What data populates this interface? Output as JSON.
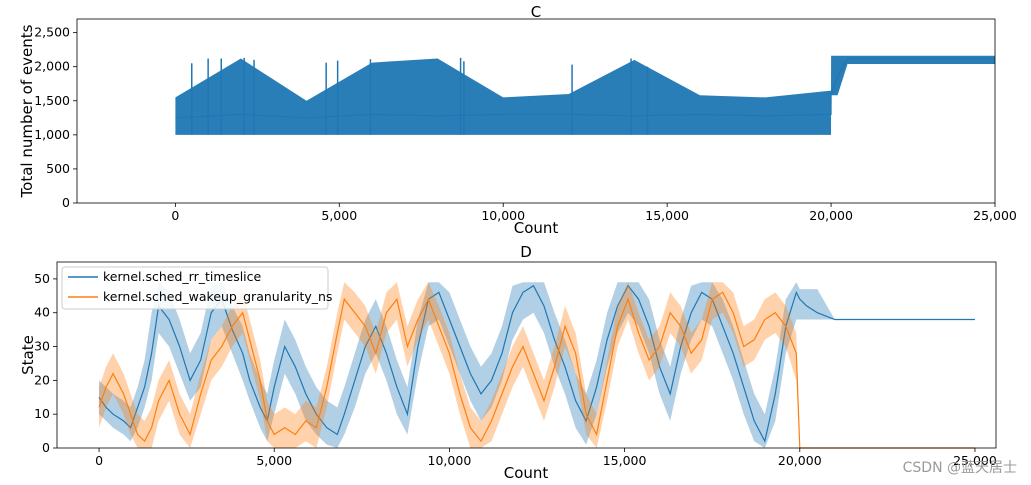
{
  "watermark": "CSDN @蓝天居士",
  "chart_data": [
    {
      "type": "line",
      "panel": "C",
      "title": "C",
      "xlabel": "Count",
      "ylabel": "Total number of events",
      "xlim": [
        -3000,
        25000
      ],
      "ylim": [
        0,
        2700
      ],
      "xticks": [
        0,
        5000,
        10000,
        15000,
        20000,
        25000
      ],
      "xtick_labels": [
        "0",
        "5,000",
        "10,000",
        "15,000",
        "20,000",
        "25,000"
      ],
      "yticks": [
        0,
        500,
        1000,
        1500,
        2000,
        2500
      ],
      "ytick_labels": [
        "0",
        "500",
        "1,000",
        "1,500",
        "2,000",
        "2,500"
      ],
      "grid": false,
      "series": [
        {
          "color": "#1f77b4",
          "x": [
            0,
            2000,
            4000,
            6000,
            8000,
            10000,
            12000,
            14000,
            16000,
            18000,
            19999,
            20000,
            20200,
            20500,
            21000,
            22000,
            23000,
            24000,
            25000
          ],
          "y": [
            1250,
            1300,
            1250,
            1300,
            1280,
            1300,
            1300,
            1280,
            1300,
            1280,
            1300,
            1600,
            1850,
            2120,
            2120,
            2120,
            2120,
            2120,
            2120
          ],
          "band_low": [
            1000,
            1000,
            1000,
            1000,
            1000,
            1000,
            1000,
            1000,
            1000,
            1000,
            1000,
            1580,
            1580,
            2040,
            2040,
            2040,
            2040,
            2040,
            2040
          ],
          "band_high": [
            1550,
            2120,
            1500,
            2060,
            2120,
            1550,
            1600,
            2100,
            1580,
            1550,
            1650,
            2160,
            2160,
            2160,
            2160,
            2160,
            2160,
            2160,
            2160
          ],
          "spikes": [
            {
              "x": 500,
              "y": 2050
            },
            {
              "x": 1000,
              "y": 2120
            },
            {
              "x": 1400,
              "y": 2120
            },
            {
              "x": 2100,
              "y": 2130
            },
            {
              "x": 2400,
              "y": 2100
            },
            {
              "x": 4600,
              "y": 2060
            },
            {
              "x": 4950,
              "y": 2090
            },
            {
              "x": 5950,
              "y": 2110
            },
            {
              "x": 8700,
              "y": 2130
            },
            {
              "x": 8800,
              "y": 2080
            },
            {
              "x": 12100,
              "y": 2030
            },
            {
              "x": 13900,
              "y": 2120
            },
            {
              "x": 14400,
              "y": 2000
            }
          ]
        }
      ]
    },
    {
      "type": "line",
      "panel": "D",
      "title": "D",
      "xlabel": "Count",
      "ylabel": "State",
      "xlim": [
        -1200,
        25600
      ],
      "ylim": [
        0,
        55
      ],
      "xticks": [
        0,
        5000,
        10000,
        15000,
        20000,
        25000
      ],
      "xtick_labels": [
        "0",
        "5,000",
        "10,000",
        "15,000",
        "20,000",
        "25,000"
      ],
      "yticks": [
        0,
        10,
        20,
        30,
        40,
        50
      ],
      "ytick_labels": [
        "0",
        "10",
        "20",
        "30",
        "40",
        "50"
      ],
      "grid": false,
      "legend_position": "top-left",
      "series": [
        {
          "name": "kernel.sched_rr_timeslice",
          "color": "#1f77b4",
          "x": [
            0,
            200,
            400,
            700,
            900,
            1100,
            1300,
            1500,
            1700,
            2000,
            2300,
            2600,
            2900,
            3200,
            3500,
            3800,
            4100,
            4300,
            4600,
            4800,
            5000,
            5300,
            5600,
            5900,
            6200,
            6500,
            6800,
            7000,
            7300,
            7600,
            7900,
            8200,
            8500,
            8800,
            9100,
            9400,
            9700,
            10000,
            10300,
            10600,
            10900,
            11200,
            11500,
            11800,
            12100,
            12400,
            12700,
            13000,
            13300,
            13600,
            13900,
            14200,
            14500,
            14800,
            15100,
            15400,
            15700,
            16000,
            16300,
            16600,
            16900,
            17200,
            17500,
            17800,
            18100,
            18400,
            18700,
            19000,
            19300,
            19600,
            19900,
            20000,
            20200,
            20500,
            21000,
            22000,
            23000,
            24000,
            25000
          ],
          "y": [
            15,
            12,
            10,
            8,
            6,
            12,
            18,
            28,
            42,
            38,
            30,
            20,
            26,
            40,
            44,
            35,
            28,
            20,
            12,
            8,
            18,
            30,
            24,
            16,
            10,
            6,
            4,
            10,
            20,
            30,
            36,
            28,
            18,
            10,
            30,
            44,
            46,
            38,
            30,
            22,
            16,
            20,
            28,
            40,
            46,
            48,
            42,
            32,
            24,
            14,
            8,
            18,
            32,
            42,
            48,
            44,
            36,
            24,
            16,
            30,
            40,
            46,
            44,
            36,
            28,
            18,
            8,
            2,
            16,
            36,
            46,
            44,
            42,
            40,
            38,
            38,
            38,
            38,
            38
          ],
          "band_low": [
            10,
            8,
            6,
            4,
            2,
            6,
            12,
            20,
            34,
            30,
            22,
            14,
            18,
            32,
            36,
            28,
            20,
            14,
            6,
            2,
            10,
            22,
            16,
            8,
            4,
            1,
            0,
            4,
            12,
            22,
            28,
            20,
            10,
            4,
            22,
            36,
            38,
            30,
            22,
            14,
            8,
            12,
            20,
            32,
            38,
            40,
            34,
            24,
            16,
            6,
            1,
            10,
            24,
            34,
            40,
            36,
            28,
            16,
            8,
            22,
            32,
            38,
            36,
            28,
            20,
            10,
            2,
            0,
            8,
            28,
            38,
            38,
            38,
            38,
            38,
            38,
            38,
            38,
            38
          ],
          "band_high": [
            20,
            18,
            16,
            14,
            12,
            18,
            26,
            40,
            49,
            46,
            38,
            28,
            34,
            48,
            49,
            42,
            36,
            28,
            20,
            16,
            26,
            38,
            32,
            24,
            18,
            14,
            12,
            18,
            28,
            38,
            44,
            36,
            26,
            18,
            38,
            49,
            49,
            46,
            38,
            30,
            24,
            28,
            36,
            48,
            49,
            49,
            49,
            40,
            32,
            22,
            16,
            26,
            40,
            49,
            49,
            49,
            44,
            32,
            24,
            38,
            48,
            49,
            49,
            44,
            36,
            26,
            16,
            10,
            24,
            44,
            49,
            47,
            47,
            47,
            38,
            38,
            38,
            38,
            38
          ]
        },
        {
          "name": "kernel.sched_wakeup_granularity_ns",
          "color": "#ff7f0e",
          "x": [
            0,
            200,
            400,
            700,
            900,
            1100,
            1300,
            1500,
            1700,
            2000,
            2300,
            2600,
            2900,
            3200,
            3500,
            3800,
            4100,
            4300,
            4600,
            4800,
            5000,
            5300,
            5600,
            5900,
            6200,
            6500,
            6800,
            7000,
            7300,
            7600,
            7900,
            8200,
            8500,
            8800,
            9100,
            9400,
            9700,
            10000,
            10300,
            10600,
            10900,
            11200,
            11500,
            11800,
            12100,
            12400,
            12700,
            13000,
            13300,
            13600,
            13900,
            14200,
            14500,
            14800,
            15100,
            15400,
            15700,
            16000,
            16300,
            16600,
            16900,
            17200,
            17500,
            17800,
            18100,
            18400,
            18700,
            19000,
            19300,
            19600,
            19900,
            20000,
            20200,
            20500,
            21000,
            22000,
            23000,
            24000,
            25000
          ],
          "y": [
            12,
            18,
            22,
            16,
            10,
            4,
            2,
            6,
            14,
            20,
            10,
            4,
            16,
            26,
            30,
            36,
            40,
            32,
            20,
            8,
            4,
            6,
            4,
            8,
            6,
            18,
            34,
            44,
            40,
            36,
            28,
            40,
            44,
            30,
            38,
            44,
            36,
            28,
            16,
            6,
            2,
            8,
            16,
            24,
            30,
            22,
            14,
            24,
            36,
            28,
            10,
            4,
            20,
            36,
            44,
            34,
            26,
            30,
            40,
            36,
            28,
            32,
            44,
            46,
            40,
            30,
            32,
            38,
            40,
            36,
            28,
            0,
            0,
            0,
            0,
            0,
            0,
            0,
            0
          ],
          "band_low": [
            6,
            12,
            16,
            10,
            4,
            0,
            0,
            0,
            8,
            14,
            4,
            0,
            10,
            20,
            24,
            30,
            34,
            26,
            14,
            2,
            0,
            0,
            0,
            2,
            0,
            12,
            28,
            38,
            34,
            30,
            22,
            34,
            38,
            24,
            32,
            38,
            30,
            22,
            10,
            0,
            0,
            2,
            10,
            18,
            24,
            16,
            8,
            18,
            30,
            22,
            4,
            0,
            14,
            30,
            38,
            28,
            20,
            24,
            34,
            30,
            22,
            26,
            38,
            40,
            34,
            24,
            26,
            32,
            34,
            30,
            20,
            0,
            0,
            0,
            0,
            0,
            0,
            0,
            0
          ],
          "band_high": [
            18,
            24,
            28,
            22,
            16,
            10,
            8,
            12,
            20,
            26,
            16,
            10,
            22,
            32,
            36,
            42,
            46,
            38,
            26,
            14,
            10,
            12,
            10,
            14,
            12,
            24,
            40,
            49,
            46,
            42,
            34,
            46,
            49,
            36,
            44,
            49,
            42,
            34,
            22,
            12,
            8,
            14,
            22,
            30,
            36,
            28,
            20,
            30,
            42,
            34,
            16,
            10,
            26,
            42,
            49,
            40,
            32,
            36,
            46,
            42,
            34,
            38,
            49,
            49,
            46,
            36,
            38,
            44,
            46,
            42,
            34,
            0,
            0,
            0,
            0,
            0,
            0,
            0,
            0
          ]
        }
      ]
    }
  ]
}
